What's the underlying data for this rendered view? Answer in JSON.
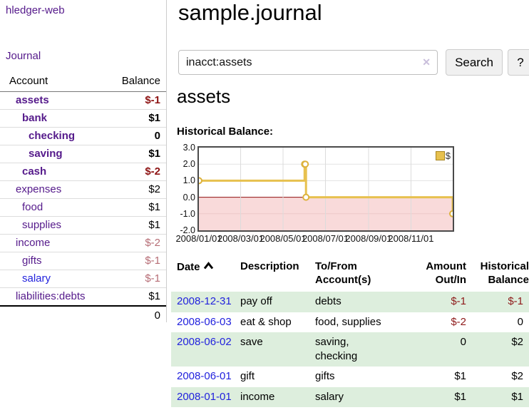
{
  "app": {
    "title": "hledger-web"
  },
  "sidebar": {
    "journal_label": "Journal",
    "table": {
      "account_header": "Account",
      "balance_header": "Balance",
      "accounts": [
        {
          "name": "assets",
          "depth": 1,
          "bold": true,
          "balance": "$-1",
          "negative": true
        },
        {
          "name": "bank",
          "depth": 2,
          "bold": true,
          "balance": "$1",
          "negative": false
        },
        {
          "name": "checking",
          "depth": 3,
          "bold": true,
          "balance": "0",
          "negative": false
        },
        {
          "name": "saving",
          "depth": 3,
          "bold": true,
          "balance": "$1",
          "negative": false
        },
        {
          "name": "cash",
          "depth": 2,
          "bold": true,
          "balance": "$-2",
          "negative": true
        },
        {
          "name": "expenses",
          "depth": 1,
          "bold": false,
          "balance": "$2",
          "negative": false
        },
        {
          "name": "food",
          "depth": 2,
          "bold": false,
          "balance": "$1",
          "negative": false
        },
        {
          "name": "supplies",
          "depth": 2,
          "bold": false,
          "balance": "$1",
          "negative": false
        },
        {
          "name": "income",
          "depth": 1,
          "bold": false,
          "balance": "$-2",
          "negative": true
        },
        {
          "name": "gifts",
          "depth": 2,
          "bold": false,
          "balance": "$-1",
          "negative": true
        },
        {
          "name": "salary",
          "depth": 2,
          "bold": false,
          "balance": "$-1",
          "negative": true,
          "unvisited": true
        },
        {
          "name": "liabilities:debts",
          "depth": 1,
          "bold": false,
          "balance": "$1",
          "negative": false
        }
      ],
      "total": "0"
    }
  },
  "main": {
    "title": "sample.journal",
    "search": {
      "query": "inacct:assets",
      "clear_glyph": "✕",
      "button": "Search",
      "help_button": "?"
    },
    "account_heading": "assets"
  },
  "chart_data": {
    "type": "line",
    "title": "Historical Balance:",
    "unit": "$",
    "xlim": [
      "2008-01-01",
      "2008-12-31"
    ],
    "ylim": [
      -2,
      3
    ],
    "x_ticks": [
      "2008/01/01",
      "2008/03/01",
      "2008/05/01",
      "2008/07/01",
      "2008/09/01",
      "2008/11/01"
    ],
    "y_ticks": [
      "3.0",
      "2.0",
      "1.0",
      "0.0",
      "-1.0",
      "-2.0"
    ],
    "grid": true,
    "legend_position": "top-right",
    "negative_region_color": "#f9dada",
    "zero_line_color": "#8f0f0f",
    "series": [
      {
        "name": "$",
        "color": "#e7c14f",
        "step": true,
        "marker": {
          "fill": "#ffffff",
          "stroke": "#ddb23c"
        },
        "points": [
          {
            "x": "2008-01-01",
            "y": 1
          },
          {
            "x": "2008-06-01",
            "y": 2
          },
          {
            "x": "2008-06-02",
            "y": 2
          },
          {
            "x": "2008-06-03",
            "y": 0
          },
          {
            "x": "2008-12-31",
            "y": -1
          }
        ]
      }
    ]
  },
  "register": {
    "headers": {
      "date": "Date",
      "sort_icon": "∧",
      "description": "Description",
      "accounts": [
        "To/From",
        "Account(s)"
      ],
      "amount": [
        "Amount",
        "Out/In"
      ],
      "balance": [
        "Historical",
        "Balance"
      ]
    },
    "rows": [
      {
        "date": "2008-12-31",
        "description": "pay off",
        "accounts_lines": [
          "debts"
        ],
        "amount": "$-1",
        "amount_negative": true,
        "balance": "$-1",
        "balance_negative": true
      },
      {
        "date": "2008-06-03",
        "description": "eat & shop",
        "accounts_lines": [
          "food, supplies"
        ],
        "amount": "$-2",
        "amount_negative": true,
        "balance": "0",
        "balance_negative": false
      },
      {
        "date": "2008-06-02",
        "description": "save",
        "accounts_lines": [
          "saving,",
          "checking"
        ],
        "amount": "0",
        "amount_negative": false,
        "balance": "$2",
        "balance_negative": false
      },
      {
        "date": "2008-06-01",
        "description": "gift",
        "accounts_lines": [
          "gifts"
        ],
        "amount": "$1",
        "amount_negative": false,
        "balance": "$2",
        "balance_negative": false
      },
      {
        "date": "2008-01-01",
        "description": "income",
        "accounts_lines": [
          "salary"
        ],
        "amount": "$1",
        "amount_negative": false,
        "balance": "$1",
        "balance_negative": false
      }
    ]
  },
  "colors": {
    "link_visited": "#551a8b",
    "link_unvisited": "#2222dd",
    "negative_strong": "#8e1414",
    "negative_soft": "#b66d75",
    "row_stripe_green": "#ddeedd",
    "chart_line_gold": "#e7c14f",
    "chart_negative_pink": "#f9dada",
    "chart_zero_line": "#8f0f0f"
  }
}
